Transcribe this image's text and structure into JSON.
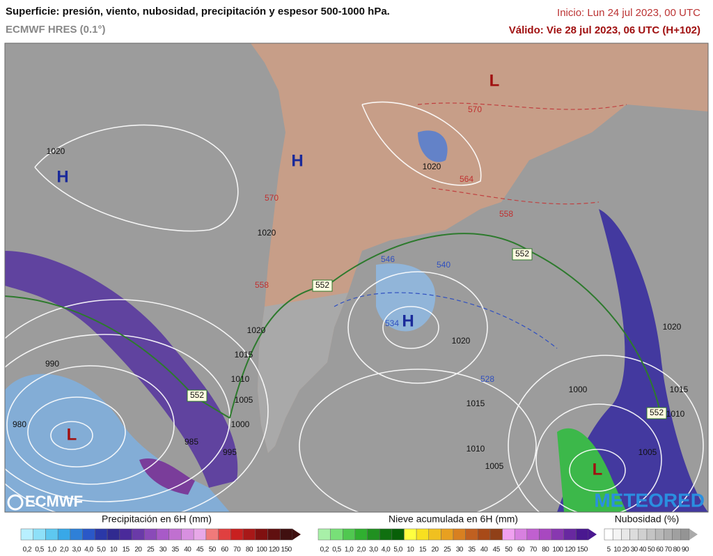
{
  "header": {
    "title": "Superficie: presión, viento, nubosidad, precipitación y espesor 500-1000 hPa.",
    "model": "ECMWF HRES (0.1°)",
    "init": "Inicio: Lun 24 jul 2023, 00 UTC",
    "valid": "Válido: Vie 28 jul 2023, 06 UTC (H+102)"
  },
  "map": {
    "pressure_centers": [
      "H",
      "H",
      "H",
      "L",
      "L",
      "L"
    ],
    "isobar_labels": [
      "1020",
      "1020",
      "1020",
      "1020",
      "1015",
      "1010",
      "1005",
      "1000",
      "995",
      "990",
      "985",
      "980",
      "1020",
      "1015",
      "1010",
      "1005",
      "1000",
      "1020",
      "1015",
      "1010",
      "1005"
    ],
    "thickness_labels": [
      "570",
      "564",
      "558",
      "570",
      "558",
      "552",
      "552",
      "552",
      "552",
      "546",
      "540",
      "534",
      "528"
    ],
    "logos": [
      "ECMWF",
      "METEORED"
    ]
  },
  "legends": [
    {
      "title": "Precipitación en 6H (mm)",
      "ticks": [
        "0,2",
        "0,5",
        "1,0",
        "2,0",
        "3,0",
        "4,0",
        "5,0",
        "10",
        "15",
        "20",
        "25",
        "30",
        "35",
        "40",
        "45",
        "50",
        "60",
        "70",
        "80",
        "100",
        "120",
        "150"
      ]
    },
    {
      "title": "Nieve acumulada en 6H (mm)",
      "ticks": [
        "0,2",
        "0,5",
        "1,0",
        "2,0",
        "3,0",
        "4,0",
        "5,0",
        "10",
        "15",
        "20",
        "25",
        "30",
        "35",
        "40",
        "45",
        "50",
        "60",
        "70",
        "80",
        "100",
        "120",
        "150"
      ]
    },
    {
      "title": "Nubosidad (%)",
      "ticks": [
        "5",
        "10",
        "20",
        "30",
        "40",
        "50",
        "60",
        "70",
        "80",
        "90"
      ]
    }
  ]
}
